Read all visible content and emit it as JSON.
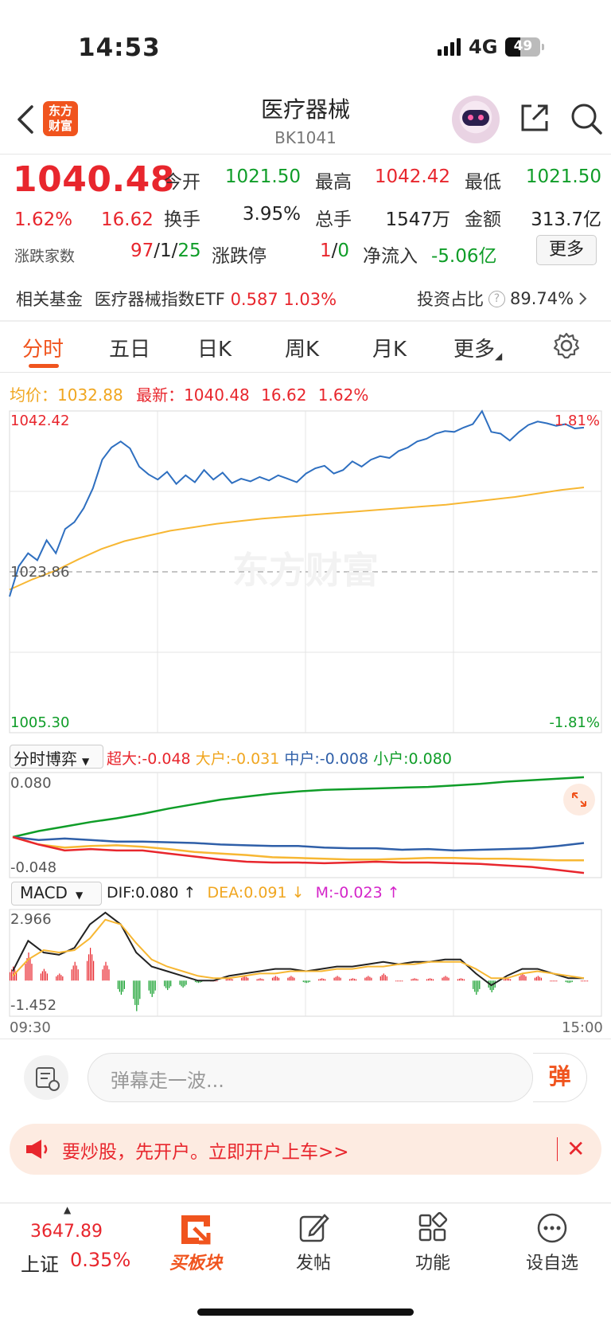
{
  "status": {
    "time": "14:53",
    "network": "4G",
    "battery": "49"
  },
  "header": {
    "logo": "东方\n财富",
    "title": "医疗器械",
    "code": "BK1041"
  },
  "quote": {
    "price": "1040.48",
    "change_pct": "1.62%",
    "change_amt": "16.62",
    "open_label": "今开",
    "open": "1021.50",
    "high_label": "最高",
    "high": "1042.42",
    "low_label": "最低",
    "low": "1021.50",
    "turnover_label": "换手",
    "turnover": "3.95%",
    "volume_label": "总手",
    "volume": "1547万",
    "amount_label": "金额",
    "amount": "313.7亿",
    "breadth_label": "涨跌家数",
    "up": "97",
    "flat": "1",
    "down": "25",
    "limit_label": "涨跌停",
    "limit_up": "1",
    "limit_down": "0",
    "netflow_label": "净流入",
    "netflow": "-5.06亿",
    "more": "更多"
  },
  "fund": {
    "label": "相关基金",
    "name": "医疗器械指数ETF",
    "price": "0.587",
    "pct": "1.03%",
    "ratio_label": "投资占比",
    "ratio": "89.74%"
  },
  "tabs": [
    "分时",
    "五日",
    "日K",
    "周K",
    "月K",
    "更多"
  ],
  "legend": {
    "avg_label": "均价：",
    "avg": "1032.88",
    "last_label": "最新：",
    "last": "1040.48",
    "amt": "16.62",
    "pct": "1.62%"
  },
  "colors": {
    "red": "#e8262d",
    "green": "#0f9d28",
    "price_line": "#2e6fc0",
    "avg_line": "#f7b733",
    "accent": "#f0541e"
  },
  "chart_data": [
    {
      "type": "line",
      "title": "",
      "y_max_label": "1042.42",
      "y_mid_label": "1023.86",
      "y_min_label": "1005.30",
      "pct_max_label": "1.81%",
      "pct_min_label": "-1.81%",
      "ylim": [
        1005.3,
        1042.42
      ],
      "prev_close": 1023.86,
      "x_start": "09:30",
      "x_end": "15:00",
      "series": [
        {
          "role": "price",
          "values": [
            1021.0,
            1024.5,
            1026.0,
            1025.2,
            1027.5,
            1026.0,
            1028.8,
            1029.6,
            1031.2,
            1033.5,
            1036.8,
            1038.2,
            1038.9,
            1038.1,
            1036.0,
            1035.1,
            1034.5,
            1035.4,
            1034.0,
            1035.0,
            1034.2,
            1035.6,
            1034.5,
            1035.3,
            1034.1,
            1034.6,
            1034.3,
            1034.8,
            1034.4,
            1035.0,
            1034.6,
            1034.2,
            1035.2,
            1035.8,
            1036.1,
            1035.2,
            1035.6,
            1036.6,
            1036.0,
            1036.8,
            1037.2,
            1037.0,
            1037.8,
            1038.2,
            1038.9,
            1039.2,
            1039.8,
            1040.1,
            1040.0,
            1040.5,
            1040.9,
            1042.4,
            1040.0,
            1039.8,
            1039.0,
            1040.0,
            1040.8,
            1041.2,
            1041.0,
            1040.7,
            1040.9,
            1040.4,
            1040.5
          ]
        },
        {
          "role": "avg",
          "values": [
            1021.8,
            1023.0,
            1024.0,
            1025.3,
            1026.5,
            1027.4,
            1028.0,
            1028.6,
            1029.0,
            1029.4,
            1029.7,
            1030.0,
            1030.2,
            1030.4,
            1030.6,
            1030.8,
            1031.0,
            1031.2,
            1031.4,
            1031.6,
            1031.9,
            1032.2,
            1032.5,
            1032.9,
            1033.3,
            1033.6
          ]
        }
      ]
    },
    {
      "type": "line",
      "title": "分时博弈",
      "labels": {
        "super": "超大:-0.048",
        "large": "大户:-0.031",
        "mid": "中户:-0.008",
        "small": "小户:0.080"
      },
      "y_max_label": "0.080",
      "y_min_label": "-0.048",
      "ylim": [
        -0.05,
        0.082
      ],
      "series": [
        {
          "name": "小户",
          "values": [
            0.0,
            0.008,
            0.014,
            0.02,
            0.025,
            0.031,
            0.038,
            0.044,
            0.05,
            0.054,
            0.058,
            0.061,
            0.063,
            0.064,
            0.065,
            0.066,
            0.067,
            0.069,
            0.071,
            0.074,
            0.076,
            0.078,
            0.08
          ]
        },
        {
          "name": "中户",
          "values": [
            0.0,
            -0.004,
            -0.002,
            -0.004,
            -0.006,
            -0.006,
            -0.007,
            -0.008,
            -0.01,
            -0.011,
            -0.012,
            -0.012,
            -0.014,
            -0.015,
            -0.015,
            -0.017,
            -0.016,
            -0.018,
            -0.017,
            -0.016,
            -0.015,
            -0.012,
            -0.008
          ]
        },
        {
          "name": "大户",
          "values": [
            0.0,
            -0.01,
            -0.014,
            -0.012,
            -0.011,
            -0.013,
            -0.016,
            -0.02,
            -0.022,
            -0.024,
            -0.027,
            -0.028,
            -0.029,
            -0.03,
            -0.03,
            -0.029,
            -0.028,
            -0.028,
            -0.029,
            -0.029,
            -0.03,
            -0.031,
            -0.031
          ]
        },
        {
          "name": "超大",
          "values": [
            0.0,
            -0.01,
            -0.018,
            -0.016,
            -0.018,
            -0.018,
            -0.022,
            -0.026,
            -0.03,
            -0.033,
            -0.034,
            -0.034,
            -0.035,
            -0.034,
            -0.033,
            -0.034,
            -0.034,
            -0.035,
            -0.036,
            -0.038,
            -0.04,
            -0.044,
            -0.048
          ]
        }
      ]
    },
    {
      "type": "line",
      "title": "MACD",
      "labels": {
        "dif": "DIF:0.080 ↑",
        "dea": "DEA:0.091 ↓",
        "m": "M:-0.023 ↑"
      },
      "y_max_label": "2.966",
      "y_min_label": "-1.452",
      "ylim": [
        -1.452,
        2.966
      ],
      "series": [
        {
          "name": "DIF",
          "values": [
            0.4,
            1.7,
            1.2,
            1.1,
            1.4,
            2.4,
            2.9,
            2.4,
            1.2,
            0.6,
            0.4,
            0.2,
            0.0,
            0.0,
            0.2,
            0.3,
            0.4,
            0.5,
            0.5,
            0.4,
            0.5,
            0.6,
            0.6,
            0.7,
            0.8,
            0.7,
            0.8,
            0.8,
            0.9,
            0.9,
            0.3,
            -0.2,
            0.2,
            0.5,
            0.5,
            0.3,
            0.1,
            0.1
          ]
        },
        {
          "name": "DEA",
          "values": [
            0.2,
            0.9,
            1.3,
            1.2,
            1.3,
            1.8,
            2.6,
            2.4,
            1.6,
            0.9,
            0.6,
            0.4,
            0.2,
            0.1,
            0.1,
            0.2,
            0.3,
            0.3,
            0.4,
            0.4,
            0.4,
            0.5,
            0.5,
            0.6,
            0.6,
            0.7,
            0.7,
            0.8,
            0.8,
            0.8,
            0.5,
            0.1,
            0.1,
            0.3,
            0.4,
            0.3,
            0.2,
            0.1
          ]
        },
        {
          "name": "M",
          "values": [
            0.6,
            1.2,
            0.5,
            0.3,
            0.8,
            1.4,
            0.8,
            -0.6,
            -1.3,
            -0.7,
            -0.4,
            -0.3,
            -0.1,
            0.0,
            0.1,
            0.2,
            0.1,
            0.2,
            0.2,
            -0.1,
            0.1,
            0.2,
            0.1,
            0.2,
            0.3,
            0.0,
            0.1,
            0.1,
            0.2,
            0.1,
            -0.6,
            -0.5,
            0.1,
            0.3,
            0.2,
            0.0,
            -0.1,
            0.0
          ]
        }
      ]
    }
  ],
  "comment": {
    "placeholder": "弹幕走一波...",
    "danmu": "弹"
  },
  "ad": {
    "text": "要炒股，先开户。立即开户上车>>"
  },
  "nav": {
    "index_value": "3647.89",
    "index_name": "上证",
    "index_pct": "0.35%",
    "items": [
      "买板块",
      "发帖",
      "功能",
      "设自选"
    ]
  }
}
